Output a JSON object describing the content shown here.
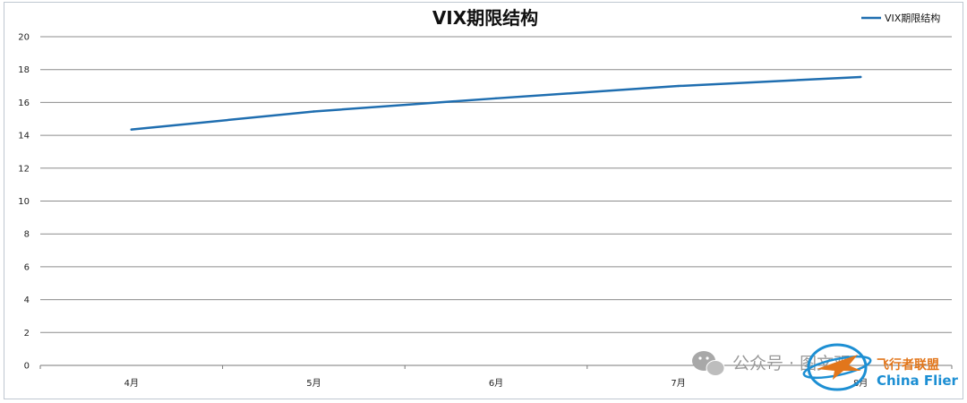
{
  "chart_data": {
    "type": "line",
    "title": "VIX期限结构",
    "xlabel": "",
    "ylabel": "",
    "categories": [
      "4月",
      "5月",
      "6月",
      "7月",
      "8月"
    ],
    "series": [
      {
        "name": "VIX期限结构",
        "values": [
          14.35,
          15.45,
          16.25,
          17.0,
          17.55
        ],
        "color": "#1f6eb0"
      }
    ],
    "ylim": [
      0,
      20
    ],
    "yticks": [
      0,
      2,
      4,
      6,
      8,
      10,
      12,
      14,
      16,
      18,
      20
    ],
    "grid": true,
    "legend": "top-right"
  },
  "watermark": {
    "account_text": "公众号 · 图文观",
    "brand_cn": "飞行者联盟",
    "brand_en": "China Flier"
  },
  "colors": {
    "grid": "#8c8c8c",
    "line": "#1f6eb0",
    "watermark_orange": "#e2761b",
    "watermark_blue": "#1d8fd3"
  }
}
